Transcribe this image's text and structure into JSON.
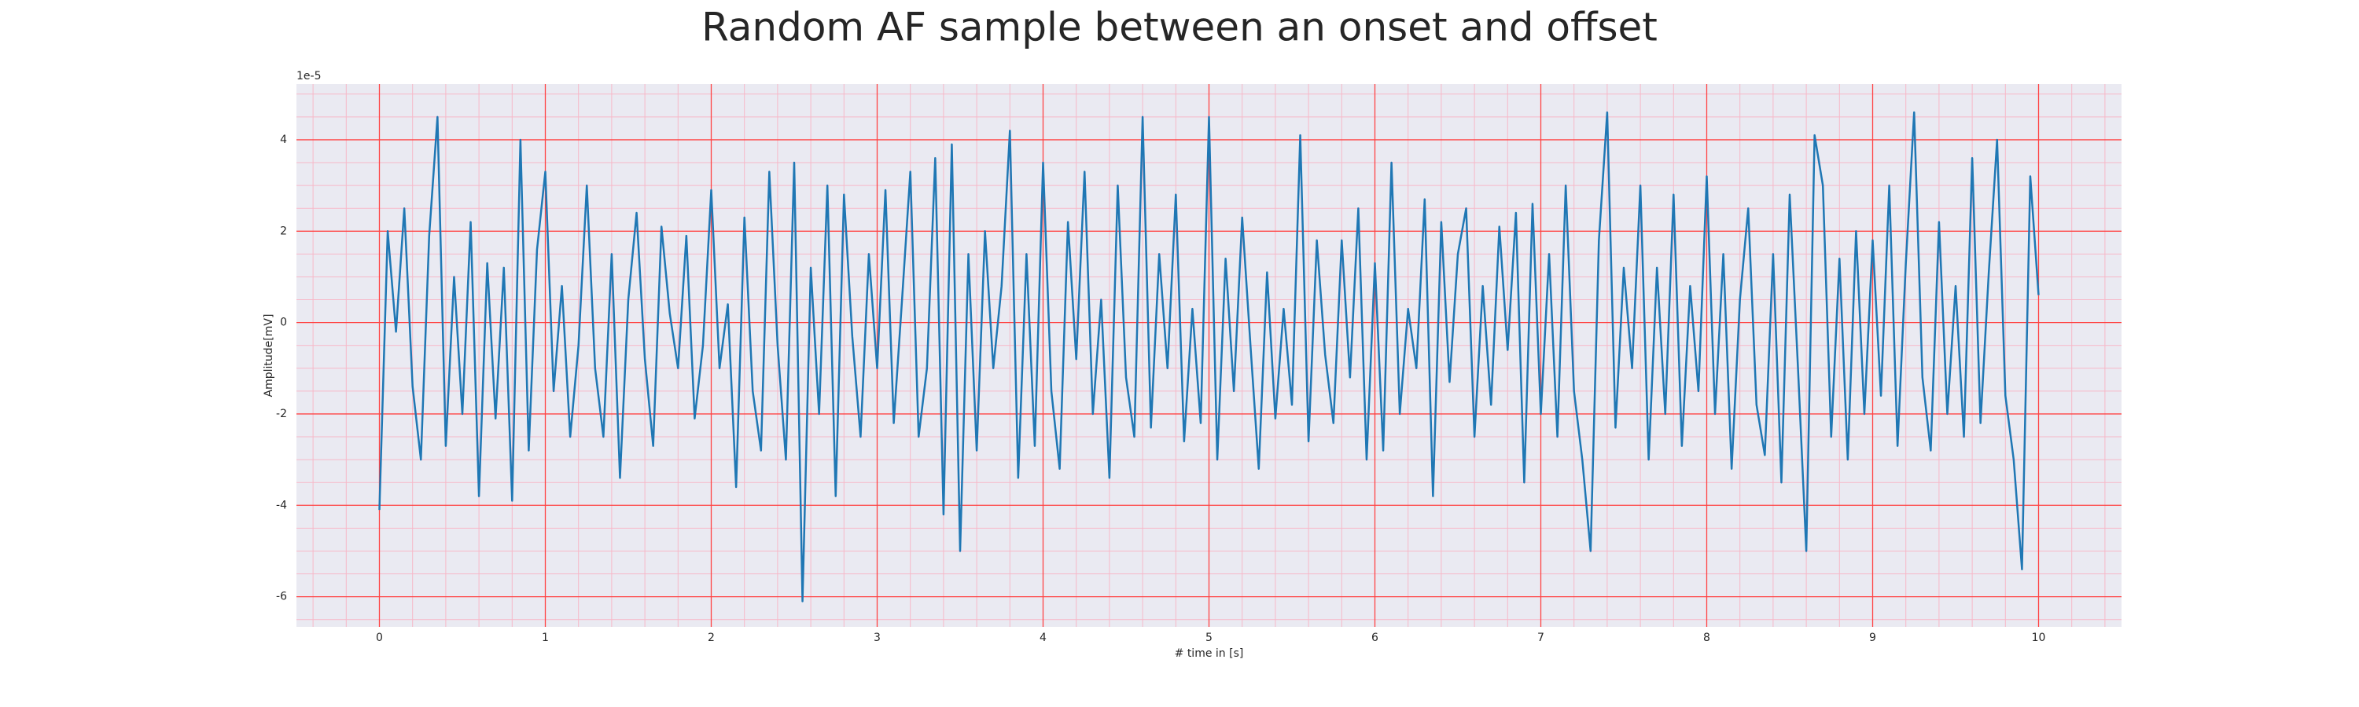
{
  "chart_data": {
    "type": "line",
    "title": "Random AF sample between an onset and offset",
    "xlabel": "# time in [s]",
    "ylabel": "Amplitude[mV]",
    "y_offset_label": "1e-5",
    "xlim": [
      -0.5,
      10.5
    ],
    "ylim": [
      -6.66,
      5.22
    ],
    "xticks": [
      0,
      1,
      2,
      3,
      4,
      5,
      6,
      7,
      8,
      9,
      10
    ],
    "yticks": [
      -6,
      -4,
      -2,
      0,
      2,
      4
    ],
    "x_minor_ticks": [
      -0.4,
      -0.2,
      0.2,
      0.4,
      0.6,
      0.8,
      1.2,
      1.4,
      1.6,
      1.8,
      2.2,
      2.4,
      2.6,
      2.8,
      3.2,
      3.4,
      3.6,
      3.8,
      4.2,
      4.4,
      4.6,
      4.8,
      5.2,
      5.4,
      5.6,
      5.8,
      6.2,
      6.4,
      6.6,
      6.8,
      7.2,
      7.4,
      7.6,
      7.8,
      8.2,
      8.4,
      8.6,
      8.8,
      9.2,
      9.4,
      9.6,
      9.8,
      10.2,
      10.4
    ],
    "y_minor_ticks": [
      -6.5,
      -5.5,
      -5,
      -4.5,
      -3.5,
      -3,
      -2.5,
      -1.5,
      -1,
      -0.5,
      0.5,
      1,
      1.5,
      2.5,
      3,
      3.5,
      4.5,
      5
    ],
    "grid": true,
    "grid_color": "#ff4444",
    "minor_grid_color": "#f7b8c8",
    "background": "#eaeaf2",
    "series": [
      {
        "color": "#1f77b4",
        "x": [
          0,
          0.05,
          0.1,
          0.15,
          0.2,
          0.25,
          0.3,
          0.35,
          0.4,
          0.45,
          0.5,
          0.55,
          0.6,
          0.65,
          0.7,
          0.75,
          0.8,
          0.85,
          0.9,
          0.95,
          1,
          1.05,
          1.1,
          1.15,
          1.2,
          1.25,
          1.3,
          1.35,
          1.4,
          1.45,
          1.5,
          1.55,
          1.6,
          1.65,
          1.7,
          1.75,
          1.8,
          1.85,
          1.9,
          1.95,
          2,
          2.05,
          2.1,
          2.15,
          2.2,
          2.25,
          2.3,
          2.35,
          2.4,
          2.45,
          2.5,
          2.55,
          2.6,
          2.65,
          2.7,
          2.75,
          2.8,
          2.85,
          2.9,
          2.95,
          3,
          3.05,
          3.1,
          3.15,
          3.2,
          3.25,
          3.3,
          3.35,
          3.4,
          3.45,
          3.5,
          3.55,
          3.6,
          3.65,
          3.7,
          3.75,
          3.8,
          3.85,
          3.9,
          3.95,
          4,
          4.05,
          4.1,
          4.15,
          4.2,
          4.25,
          4.3,
          4.35,
          4.4,
          4.45,
          4.5,
          4.55,
          4.6,
          4.65,
          4.7,
          4.75,
          4.8,
          4.85,
          4.9,
          4.95,
          5,
          5.05,
          5.1,
          5.15,
          5.2,
          5.25,
          5.3,
          5.35,
          5.4,
          5.45,
          5.5,
          5.55,
          5.6,
          5.65,
          5.7,
          5.75,
          5.8,
          5.85,
          5.9,
          5.95,
          6,
          6.05,
          6.1,
          6.15,
          6.2,
          6.25,
          6.3,
          6.35,
          6.4,
          6.45,
          6.5,
          6.55,
          6.6,
          6.65,
          6.7,
          6.75,
          6.8,
          6.85,
          6.9,
          6.95,
          7,
          7.05,
          7.1,
          7.15,
          7.2,
          7.25,
          7.3,
          7.35,
          7.4,
          7.45,
          7.5,
          7.55,
          7.6,
          7.65,
          7.7,
          7.75,
          7.8,
          7.85,
          7.9,
          7.95,
          8,
          8.05,
          8.1,
          8.15,
          8.2,
          8.25,
          8.3,
          8.35,
          8.4,
          8.45,
          8.5,
          8.55,
          8.6,
          8.65,
          8.7,
          8.75,
          8.8,
          8.85,
          8.9,
          8.95,
          9,
          9.05,
          9.1,
          9.15,
          9.2,
          9.25,
          9.3,
          9.35,
          9.4,
          9.45,
          9.5,
          9.55,
          9.6,
          9.65,
          9.7,
          9.75,
          9.8,
          9.85,
          9.9,
          9.95,
          10
        ],
        "values": [
          -4.1,
          2.0,
          -0.2,
          2.5,
          -1.4,
          -3.0,
          1.9,
          4.5,
          -2.7,
          1.0,
          -2.0,
          2.2,
          -3.8,
          1.3,
          -2.1,
          1.2,
          -3.9,
          4.0,
          -2.8,
          1.6,
          3.3,
          -1.5,
          0.8,
          -2.5,
          -0.5,
          3.0,
          -1.0,
          -2.5,
          1.5,
          -3.4,
          0.5,
          2.4,
          -0.8,
          -2.7,
          2.1,
          0.2,
          -1.0,
          1.9,
          -2.1,
          -0.5,
          2.9,
          -1.0,
          0.4,
          -3.6,
          2.3,
          -1.5,
          -2.8,
          3.3,
          -0.5,
          -3.0,
          3.5,
          -6.1,
          1.2,
          -2.0,
          3.0,
          -3.8,
          2.8,
          -0.3,
          -2.5,
          1.5,
          -1.0,
          2.9,
          -2.2,
          0.5,
          3.3,
          -2.5,
          -1.0,
          3.6,
          -4.2,
          3.9,
          -5.0,
          1.5,
          -2.8,
          2.0,
          -1.0,
          0.8,
          4.2,
          -3.4,
          1.5,
          -2.7,
          3.5,
          -1.5,
          -3.2,
          2.2,
          -0.8,
          3.3,
          -2.0,
          0.5,
          -3.4,
          3.0,
          -1.2,
          -2.5,
          4.5,
          -2.3,
          1.5,
          -1.0,
          2.8,
          -2.6,
          0.3,
          -2.2,
          4.5,
          -3.0,
          1.4,
          -1.5,
          2.3,
          -0.5,
          -3.2,
          1.1,
          -2.1,
          0.3,
          -1.8,
          4.1,
          -2.6,
          1.8,
          -0.7,
          -2.2,
          1.8,
          -1.2,
          2.5,
          -3.0,
          1.3,
          -2.8,
          3.5,
          -2.0,
          0.3,
          -1.0,
          2.7,
          -3.8,
          2.2,
          -1.3,
          1.5,
          2.5,
          -2.5,
          0.8,
          -1.8,
          2.1,
          -0.6,
          2.4,
          -3.5,
          2.6,
          -2.0,
          1.5,
          -2.5,
          3.0,
          -1.5,
          -3.0,
          -5.0,
          1.8,
          4.6,
          -2.3,
          1.2,
          -1.0,
          3.0,
          -3.0,
          1.2,
          -2.0,
          2.8,
          -2.7,
          0.8,
          -1.5,
          3.2,
          -2.0,
          1.5,
          -3.2,
          0.5,
          2.5,
          -1.8,
          -2.9,
          1.5,
          -3.5,
          2.8,
          -1.0,
          -5.0,
          4.1,
          3.0,
          -2.5,
          1.4,
          -3.0,
          2.0,
          -2.0,
          1.8,
          -1.6,
          3.0,
          -2.7,
          1.3,
          4.6,
          -1.2,
          -2.8,
          2.2,
          -2.0,
          0.8,
          -2.5,
          3.6,
          -2.2,
          1.1,
          4.0,
          -1.6,
          -3.0,
          -5.4,
          3.2,
          0.6
        ]
      }
    ]
  }
}
